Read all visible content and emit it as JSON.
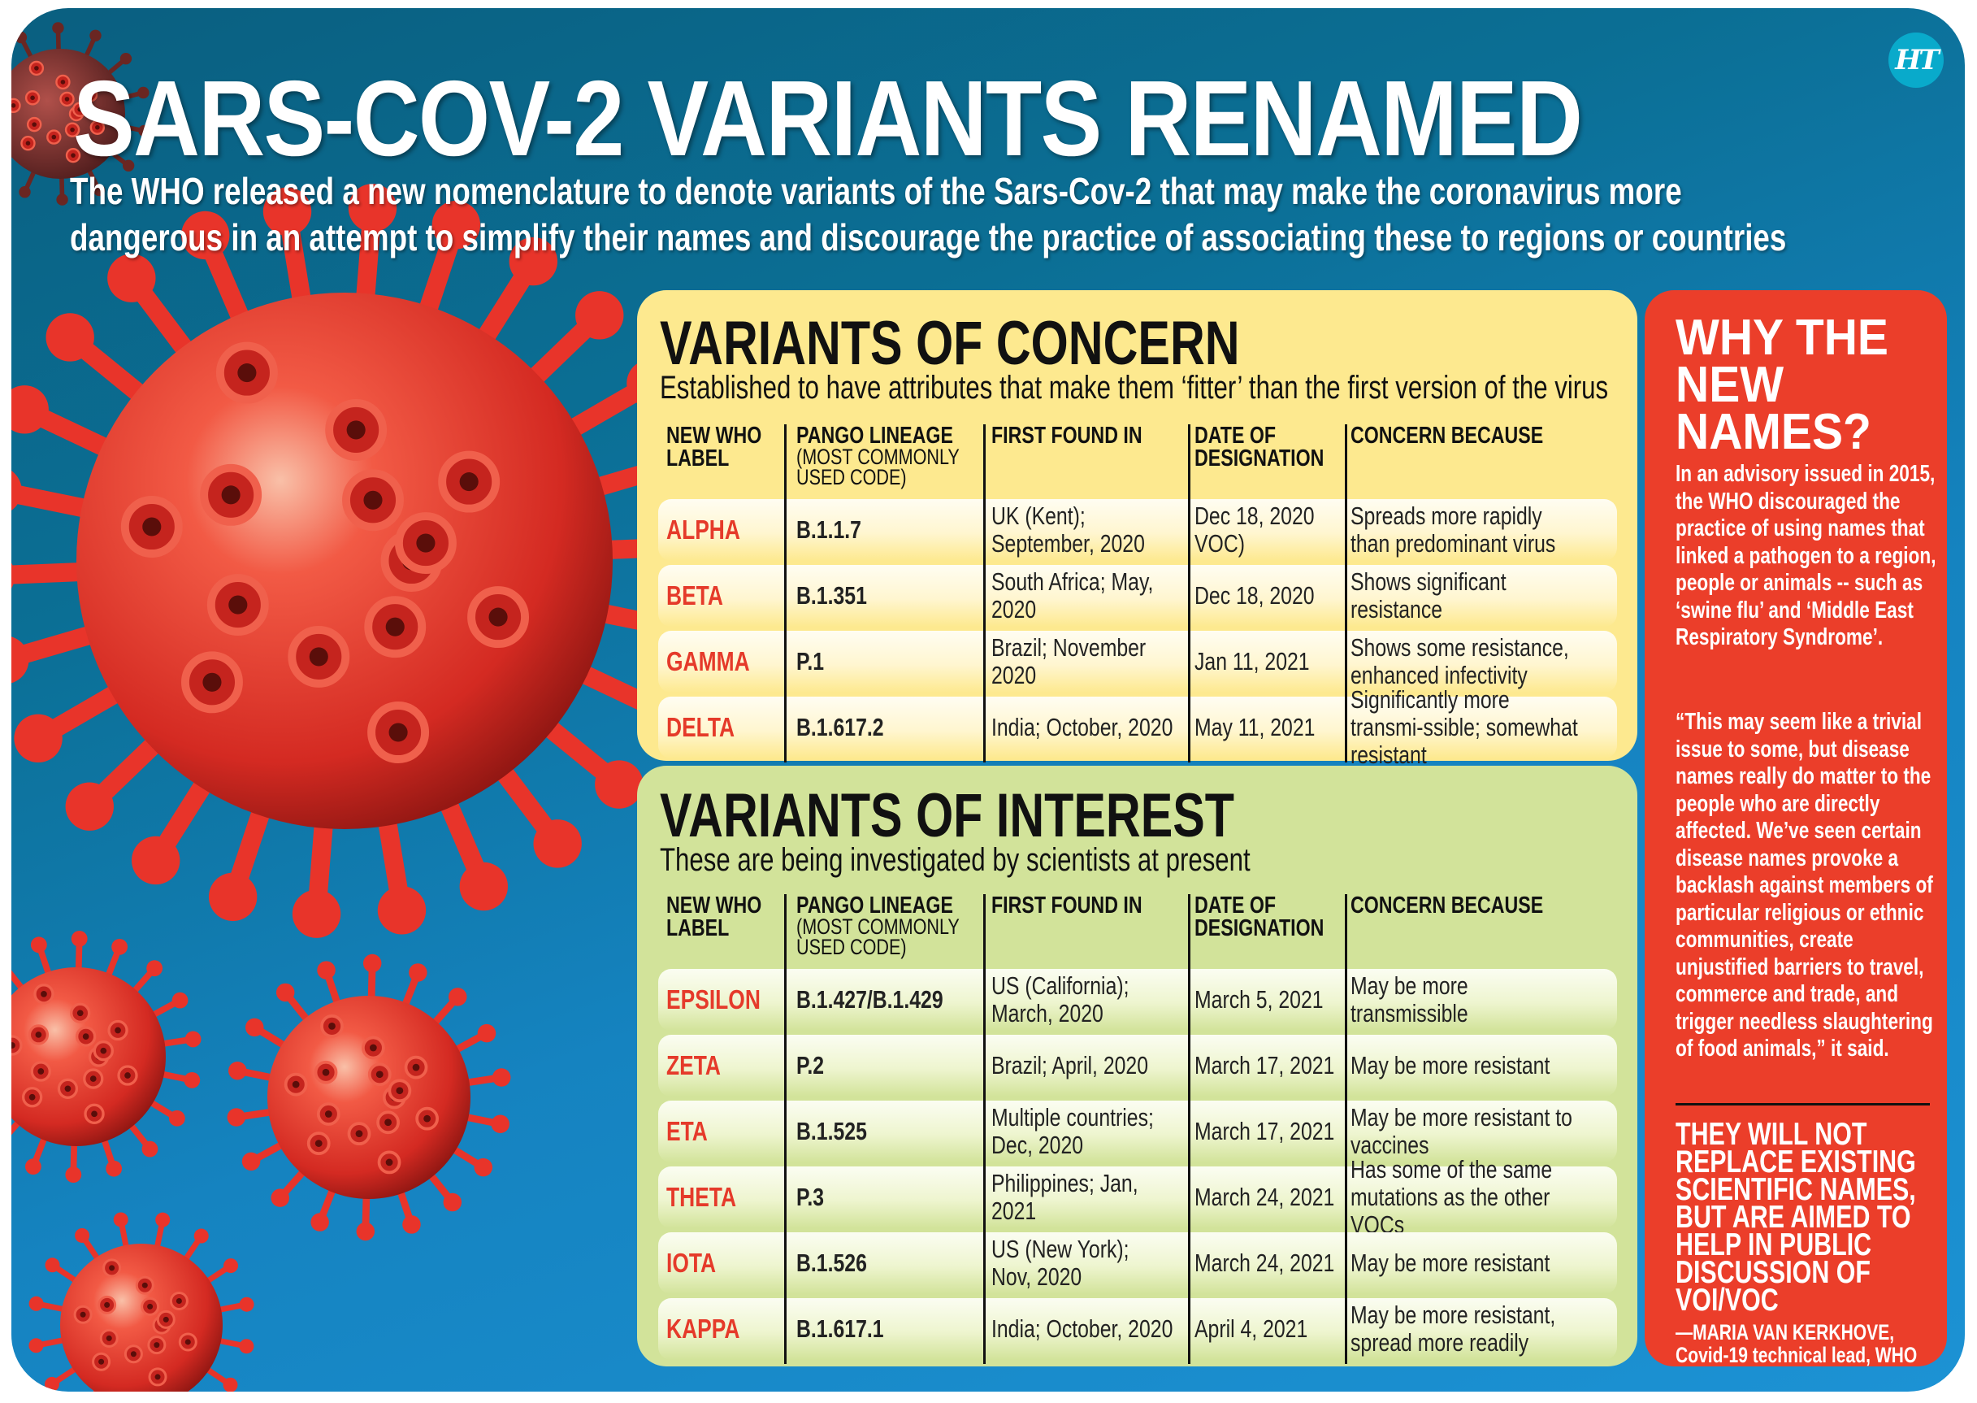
{
  "title": "SARS-COV-2 VARIANTS RENAMED",
  "subtitle_lines": [
    "The WHO released a new nomenclature to denote variants of the Sars-Cov-2 that may make the coronavirus more",
    "dangerous in an attempt to simplify their names and discourage the practice of associating these to regions or countries"
  ],
  "logo": "HT",
  "colors": {
    "background": "#1583c0",
    "concern_panel": "#fde98f",
    "interest_panel": "#d2e39a",
    "why_panel": "#eb3e2a",
    "variant_label": "#e53a2a",
    "virus": "#e8342a"
  },
  "columns": {
    "label": "NEW WHO LABEL",
    "pango": "PANGO LINEAGE",
    "pango_note": "(MOST COMMONLY USED CODE)",
    "first_found": "FIRST FOUND IN",
    "date": "DATE OF DESIGNATION",
    "concern": "CONCERN BECAUSE"
  },
  "voc": {
    "title": "VARIANTS OF CONCERN",
    "description": "Established to have attributes that make them ‘fitter’ than the first version of the virus",
    "rows": [
      {
        "label": "ALPHA",
        "pango": "B.1.1.7",
        "first_found": "UK (Kent); September, 2020",
        "date": "Dec 18, 2020 VOC)",
        "concern": "Spreads more rapidly than predominant virus"
      },
      {
        "label": "BETA",
        "pango": "B.1.351",
        "first_found": "South Africa; May, 2020",
        "date": "Dec 18, 2020",
        "concern": "Shows significant resistance"
      },
      {
        "label": "GAMMA",
        "pango": "P.1",
        "first_found": "Brazil; November 2020",
        "date": "Jan 11, 2021",
        "concern": "Shows some resistance, enhanced infectivity"
      },
      {
        "label": "DELTA",
        "pango": "B.1.617.2",
        "first_found": "India; October, 2020",
        "date": "May 11, 2021",
        "concern": "Significantly more transmi-ssible; somewhat resistant"
      }
    ]
  },
  "voi": {
    "title": "VARIANTS OF INTEREST",
    "description": "These are being investigated by scientists at present",
    "rows": [
      {
        "label": "EPSILON",
        "pango": "B.1.427/B.1.429",
        "first_found": "US (California); March, 2020",
        "date": "March 5, 2021",
        "concern": "May be more transmissible"
      },
      {
        "label": "ZETA",
        "pango": "P.2",
        "first_found": "Brazil; April, 2020",
        "date": "March 17, 2021",
        "concern": "May be more resistant"
      },
      {
        "label": "ETA",
        "pango": "B.1.525",
        "first_found": "Multiple countries; Dec, 2020",
        "date": "March 17, 2021",
        "concern": "May be more resistant to vaccines"
      },
      {
        "label": "THETA",
        "pango": "P.3",
        "first_found": "Philippines; Jan, 2021",
        "date": "March 24, 2021",
        "concern": "Has some of the same mutations as the other VOCs"
      },
      {
        "label": "IOTA",
        "pango": "B.1.526",
        "first_found": "US (New York); Nov, 2020",
        "date": "March 24, 2021",
        "concern": "May be more resistant"
      },
      {
        "label": "KAPPA",
        "pango": "B.1.617.1",
        "first_found": "India; October, 2020",
        "date": "April 4, 2021",
        "concern": "May be more resistant, spread more readily"
      }
    ]
  },
  "why": {
    "title": "WHY THE NEW NAMES?",
    "paragraph1": "In an advisory issued in 2015, the WHO discouraged the practice of using names that linked a pathogen to a region, people or animals -- such as ‘swine flu’ and ‘Middle East Respiratory Syndrome’.",
    "paragraph2": "“This may seem like a trivial issue to some, but disease names really do matter to the people who are directly affected. We’ve seen certain disease names provoke a backlash against members of particular religious or ethnic communities, create unjustified barriers to travel, commerce and trade, and trigger needless slaughtering of food animals,” it said.",
    "quote": "THEY WILL NOT REPLACE EXISTING SCIENTIFIC NAMES, BUT ARE AIMED TO HELP IN PUBLIC DISCUSSION OF VOI/VOC",
    "attribution_name": "—MARIA VAN KERKHOVE,",
    "attribution_role": "Covid-19 technical lead, WHO"
  }
}
